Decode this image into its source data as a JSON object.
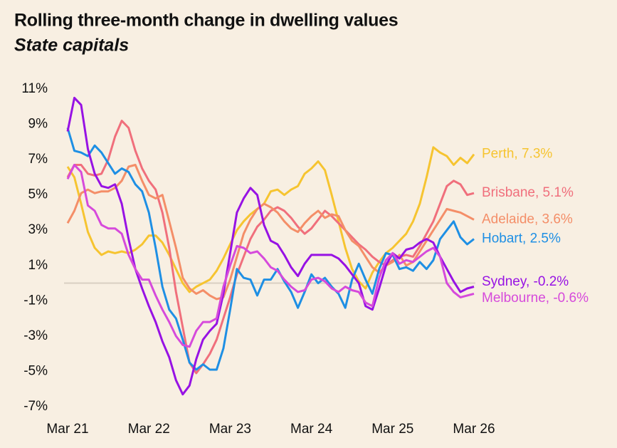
{
  "chart_data": {
    "type": "line",
    "title": "Rolling three-month change in dwelling values",
    "subtitle": "State capitals",
    "categories": [
      "Mar 21",
      null,
      null,
      null,
      null,
      null,
      null,
      null,
      null,
      null,
      null,
      null,
      "Mar 22",
      null,
      null,
      null,
      null,
      null,
      null,
      null,
      null,
      null,
      null,
      null,
      "Mar 23",
      null,
      null,
      null,
      null,
      null,
      null,
      null,
      null,
      null,
      null,
      null,
      "Mar 24",
      null,
      null,
      null,
      null,
      null,
      null,
      null,
      null,
      null,
      null,
      null,
      "Mar 25",
      null,
      null,
      null,
      null,
      null,
      null,
      null,
      null,
      null,
      null,
      null,
      "Mar 26"
    ],
    "ylim": [
      -7,
      11
    ],
    "yticks": [
      {
        "value": 11,
        "label": "11%"
      },
      {
        "value": 9,
        "label": "9%"
      },
      {
        "value": 7,
        "label": "7%"
      },
      {
        "value": 5,
        "label": "5%"
      },
      {
        "value": 3,
        "label": "3%"
      },
      {
        "value": 1,
        "label": "1%"
      },
      {
        "value": -1,
        "label": "-1%"
      },
      {
        "value": -3,
        "label": "-3%"
      },
      {
        "value": -5,
        "label": "-5%"
      },
      {
        "value": -7,
        "label": "-7%"
      }
    ],
    "zero_line": true,
    "series": [
      {
        "name": "Perth",
        "label": "Perth, 7.3%",
        "color": "#f6c430",
        "values": [
          6.6,
          6.0,
          4.5,
          2.9,
          2.0,
          1.6,
          1.8,
          1.7,
          1.8,
          1.7,
          1.9,
          2.2,
          2.7,
          2.7,
          2.3,
          1.6,
          0.8,
          0.0,
          -0.5,
          -0.2,
          0.0,
          0.2,
          0.7,
          1.4,
          2.2,
          3.0,
          3.5,
          3.9,
          4.2,
          4.5,
          5.2,
          5.3,
          5.0,
          5.3,
          5.5,
          6.2,
          6.5,
          6.9,
          6.4,
          5.0,
          3.5,
          2.0,
          0.8,
          0.1,
          -0.3,
          0.6,
          1.2,
          1.7,
          2.0,
          2.4,
          2.8,
          3.5,
          4.5,
          6.0,
          7.7,
          7.4,
          7.2,
          6.7,
          7.1,
          6.8,
          7.3
        ]
      },
      {
        "name": "Brisbane",
        "label": "Brisbane, 5.1%",
        "color": "#f06f7c",
        "values": [
          6.0,
          6.7,
          6.7,
          6.2,
          6.1,
          6.2,
          7.0,
          8.3,
          9.2,
          8.8,
          7.5,
          6.5,
          5.8,
          5.3,
          4.0,
          2.0,
          -0.5,
          -2.5,
          -4.5,
          -5.1,
          -4.6,
          -4.0,
          -3.2,
          -2.0,
          -0.8,
          0.5,
          1.5,
          2.5,
          3.2,
          3.6,
          4.1,
          4.3,
          4.1,
          3.7,
          3.2,
          2.8,
          3.1,
          3.6,
          4.1,
          3.8,
          3.4,
          3.0,
          2.6,
          2.2,
          1.9,
          1.5,
          1.2,
          1.0,
          1.3,
          1.5,
          1.6,
          1.5,
          2.1,
          2.8,
          3.5,
          4.5,
          5.5,
          5.8,
          5.6,
          5.0,
          5.1
        ]
      },
      {
        "name": "Adelaide",
        "label": "Adelaide, 3.6%",
        "color": "#f48e68",
        "values": [
          3.4,
          4.1,
          5.1,
          5.3,
          5.1,
          5.2,
          5.2,
          5.4,
          5.8,
          6.6,
          6.7,
          5.8,
          5.0,
          4.8,
          5.0,
          3.5,
          2.0,
          0.3,
          -0.3,
          -0.6,
          -0.4,
          -0.7,
          -0.9,
          -0.8,
          0.2,
          1.5,
          2.8,
          3.6,
          4.2,
          4.5,
          4.3,
          4.0,
          3.5,
          3.1,
          2.9,
          3.4,
          3.8,
          4.1,
          3.7,
          3.9,
          3.8,
          3.0,
          2.4,
          2.1,
          1.5,
          0.9,
          0.6,
          1.0,
          1.2,
          1.6,
          1.0,
          1.2,
          1.8,
          2.4,
          3.0,
          3.6,
          4.2,
          4.1,
          4.0,
          3.8,
          3.6
        ]
      },
      {
        "name": "Hobart",
        "label": "Hobart, 2.5%",
        "color": "#1e8fe4",
        "values": [
          8.8,
          7.5,
          7.4,
          7.2,
          7.8,
          7.4,
          6.8,
          6.2,
          6.5,
          6.3,
          5.6,
          5.2,
          4.0,
          2.0,
          -0.2,
          -1.5,
          -2.0,
          -3.2,
          -4.5,
          -4.9,
          -4.6,
          -4.9,
          -4.9,
          -3.7,
          -1.5,
          0.8,
          0.3,
          0.2,
          -0.7,
          0.2,
          0.2,
          0.8,
          0.1,
          -0.5,
          -1.4,
          -0.5,
          0.5,
          0.0,
          0.3,
          -0.2,
          -0.6,
          -1.4,
          0.2,
          1.1,
          0.2,
          -0.6,
          0.8,
          1.7,
          1.6,
          0.8,
          0.9,
          0.7,
          1.2,
          0.8,
          1.3,
          2.5,
          3.0,
          3.5,
          2.6,
          2.2,
          2.5
        ]
      },
      {
        "name": "Sydney",
        "label": "Sydney, -0.2%",
        "color": "#9712e4",
        "values": [
          8.6,
          10.5,
          10.1,
          7.6,
          6.2,
          5.5,
          5.4,
          5.6,
          4.5,
          2.5,
          0.8,
          -0.3,
          -1.3,
          -2.2,
          -3.3,
          -4.2,
          -5.5,
          -6.3,
          -5.8,
          -4.3,
          -3.2,
          -2.7,
          -2.3,
          -0.6,
          1.7,
          4.0,
          4.8,
          5.4,
          5.0,
          3.3,
          2.4,
          2.2,
          1.6,
          0.9,
          0.4,
          1.1,
          1.6,
          1.6,
          1.6,
          1.6,
          1.4,
          1.0,
          0.5,
          0.0,
          -1.3,
          -1.5,
          -0.3,
          1.0,
          1.7,
          1.4,
          1.9,
          2.0,
          2.3,
          2.5,
          2.3,
          1.5,
          0.8,
          0.1,
          -0.5,
          -0.3,
          -0.2
        ]
      },
      {
        "name": "Melbourne",
        "label": "Melbourne, -0.6%",
        "color": "#d64adb",
        "values": [
          5.9,
          6.7,
          6.3,
          4.4,
          4.1,
          3.3,
          3.1,
          3.1,
          2.8,
          1.6,
          0.8,
          0.2,
          0.2,
          -0.7,
          -1.5,
          -2.2,
          -3.0,
          -3.5,
          -3.6,
          -2.7,
          -2.2,
          -2.2,
          -2.0,
          -0.2,
          1.0,
          2.1,
          2.0,
          1.7,
          1.8,
          1.4,
          0.9,
          0.7,
          0.2,
          -0.2,
          -0.5,
          -0.4,
          0.2,
          0.3,
          0.1,
          -0.3,
          -0.5,
          -0.2,
          -0.4,
          -0.5,
          -1.1,
          -1.3,
          0.3,
          1.3,
          1.7,
          1.1,
          1.3,
          1.2,
          1.5,
          1.8,
          2.0,
          1.5,
          0.0,
          -0.5,
          -0.8,
          -0.7,
          -0.6
        ]
      }
    ]
  }
}
